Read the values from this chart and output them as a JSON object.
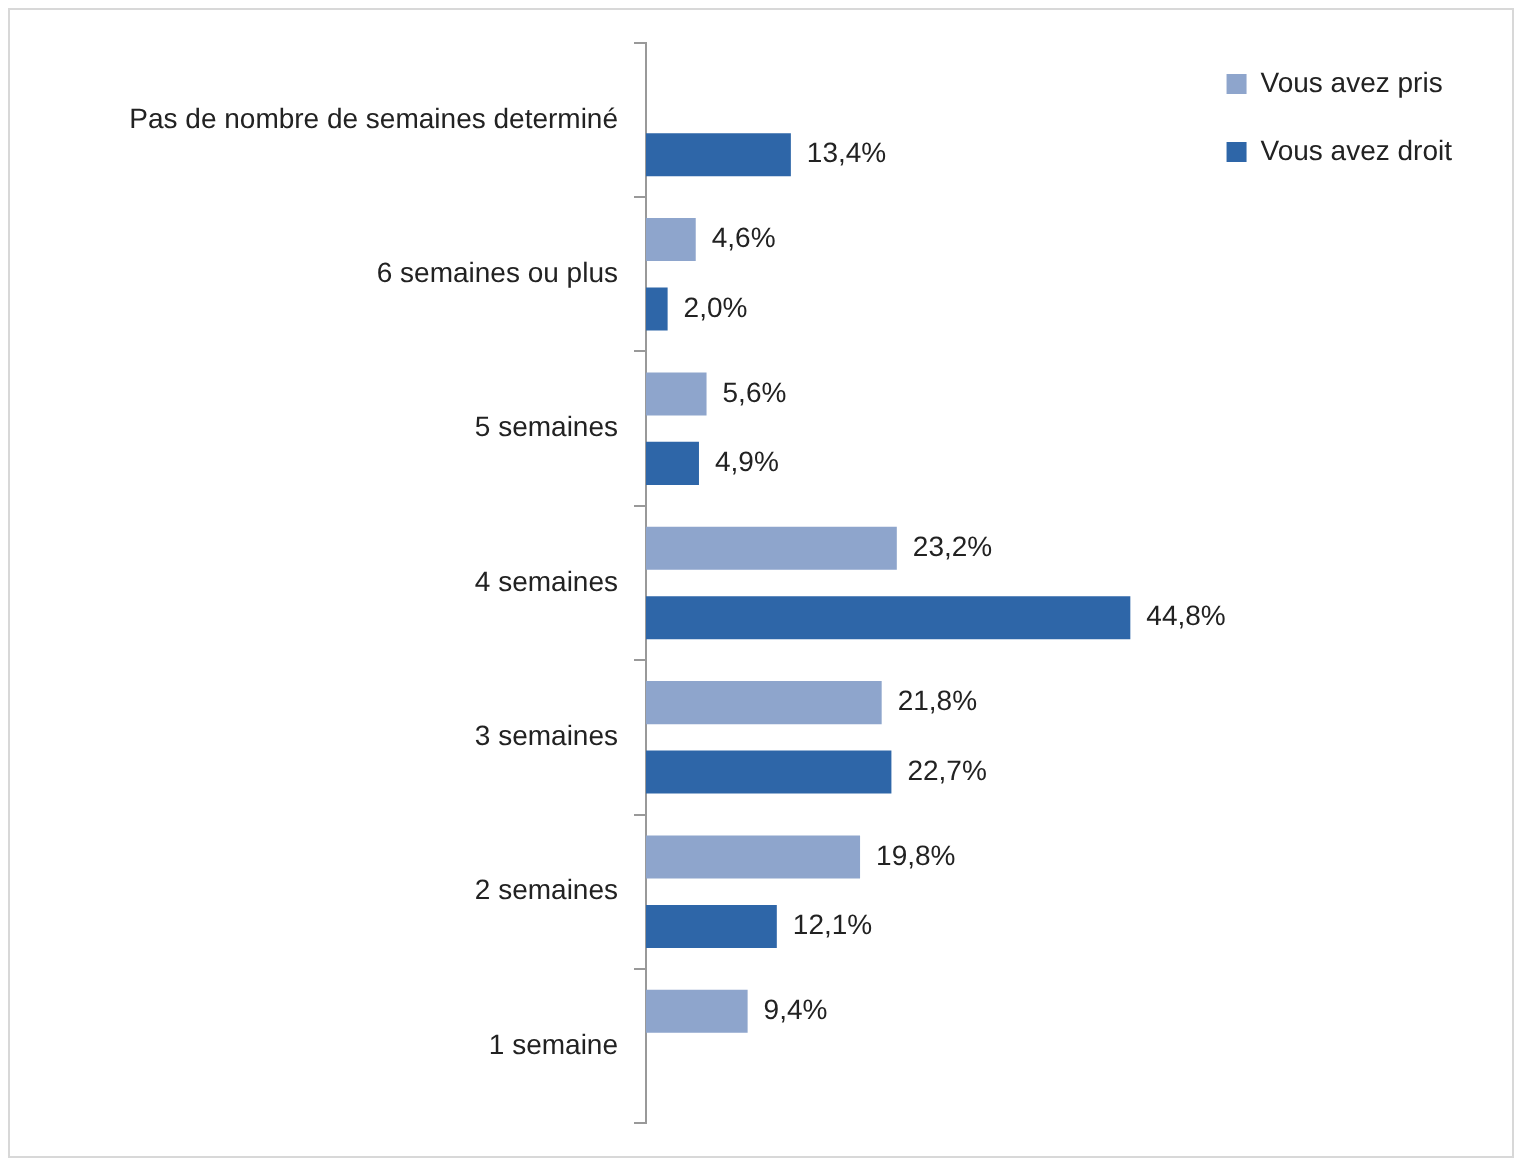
{
  "chart_data": {
    "type": "bar",
    "orientation": "horizontal",
    "categories": [
      "Pas de nombre de semaines determiné",
      "6 semaines ou plus",
      "5 semaines",
      "4 semaines",
      "3 semaines",
      "2 semaines",
      "1 semaine"
    ],
    "series": [
      {
        "name": "Vous avez pris",
        "color": "#8ea5cc",
        "values": [
          null,
          4.6,
          5.6,
          23.2,
          21.8,
          19.8,
          9.4
        ],
        "value_labels": [
          null,
          "4,6%",
          "5,6%",
          "23,2%",
          "21,8%",
          "19,8%",
          "9,4%"
        ]
      },
      {
        "name": "Vous avez droit",
        "color": "#2e66a8",
        "values": [
          13.4,
          2.0,
          4.9,
          44.8,
          22.7,
          12.1,
          null
        ],
        "value_labels": [
          "13,4%",
          "2,0%",
          "4,9%",
          "44,8%",
          "22,7%",
          "12,1%",
          null
        ]
      }
    ],
    "legend": "top right",
    "grid": false
  }
}
